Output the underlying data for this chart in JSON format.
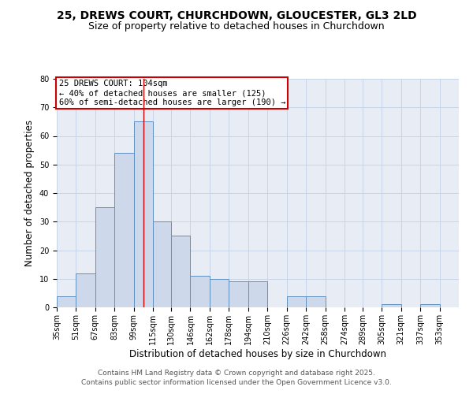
{
  "title_line1": "25, DREWS COURT, CHURCHDOWN, GLOUCESTER, GL3 2LD",
  "title_line2": "Size of property relative to detached houses in Churchdown",
  "xlabel": "Distribution of detached houses by size in Churchdown",
  "ylabel": "Number of detached properties",
  "bin_labels": [
    "35sqm",
    "51sqm",
    "67sqm",
    "83sqm",
    "99sqm",
    "115sqm",
    "130sqm",
    "146sqm",
    "162sqm",
    "178sqm",
    "194sqm",
    "210sqm",
    "226sqm",
    "242sqm",
    "258sqm",
    "274sqm",
    "289sqm",
    "305sqm",
    "321sqm",
    "337sqm",
    "353sqm"
  ],
  "bin_edges": [
    35,
    51,
    67,
    83,
    99,
    115,
    130,
    146,
    162,
    178,
    194,
    210,
    226,
    242,
    258,
    274,
    289,
    305,
    321,
    337,
    353
  ],
  "bar_heights": [
    4,
    12,
    35,
    54,
    65,
    30,
    25,
    11,
    10,
    9,
    9,
    0,
    4,
    4,
    0,
    0,
    0,
    1,
    0,
    1,
    0
  ],
  "bar_color": "#cdd9ea",
  "bar_edge_color": "#6090c0",
  "property_line_x": 107,
  "annotation_text": "25 DREWS COURT: 104sqm\n← 40% of detached houses are smaller (125)\n60% of semi-detached houses are larger (190) →",
  "annotation_box_color": "#ffffff",
  "annotation_box_edge_color": "#cc0000",
  "ylim": [
    0,
    80
  ],
  "yticks": [
    0,
    10,
    20,
    30,
    40,
    50,
    60,
    70,
    80
  ],
  "grid_color": "#c8d4e8",
  "background_color": "#e8edf5",
  "footer_line1": "Contains HM Land Registry data © Crown copyright and database right 2025.",
  "footer_line2": "Contains public sector information licensed under the Open Government Licence v3.0.",
  "title_fontsize": 10,
  "subtitle_fontsize": 9,
  "axis_label_fontsize": 8.5,
  "tick_fontsize": 7,
  "annotation_fontsize": 7.5,
  "footer_fontsize": 6.5
}
